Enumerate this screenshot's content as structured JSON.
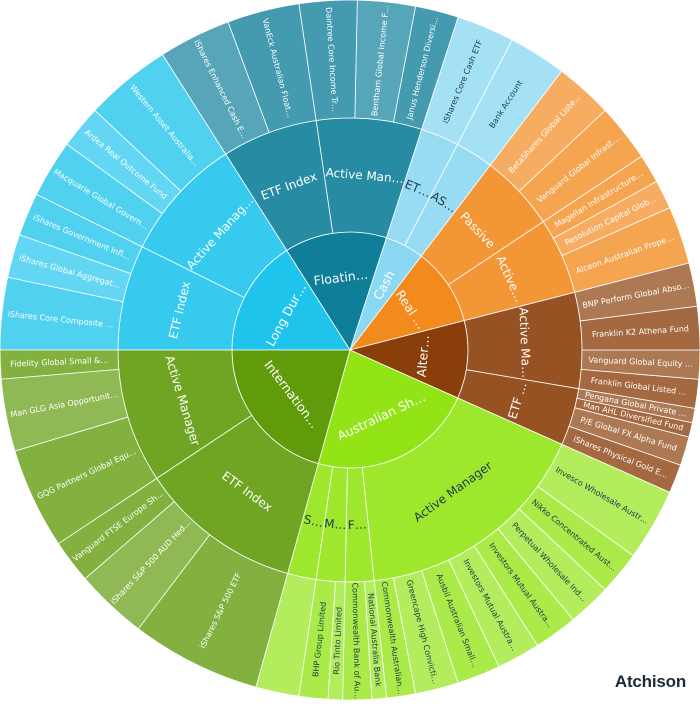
{
  "brand": {
    "name": "Atchison"
  },
  "chart_data": {
    "type": "sunburst",
    "start_angle_deg": 180,
    "colors": {
      "Long Duration": "#1ec4ec",
      "Floating Rate": "#0f7e99",
      "Cash": "#8bd8f2",
      "Real Assets": "#f28a1e",
      "Alternatives": "#8a3f0a",
      "Australian Shares": "#92e416",
      "International Shares": "#5f9b0a"
    },
    "groups": [
      {
        "name": "Long Duration",
        "children": [
          {
            "name": "Active Manager",
            "children": [
              {
                "name": "Western Asset Australian Bond Fund - Class A",
                "value": 6
              },
              {
                "name": "Ardea Real Outcome Fund",
                "value": 3
              },
              {
                "name": "Macquarie Global Government Bond Fund Class",
                "value": 4
              }
            ]
          },
          {
            "name": "ETF Index",
            "children": [
              {
                "name": "iShares Government Inflation ETF",
                "value": 3
              },
              {
                "name": "iShares Global Aggregate Bond ESG ETF",
                "value": 3
              },
              {
                "name": "iShares Core Composite Bond ETF",
                "value": 5
              }
            ]
          }
        ]
      },
      {
        "name": "Floating Rate",
        "children": [
          {
            "name": "Active Manager",
            "children": [
              {
                "name": "Janus Henderson Diversified Credit Fund",
                "value": 3
              },
              {
                "name": "Bentham Global Income Fund",
                "value": 4
              },
              {
                "name": "Daintree Core Income Trust",
                "value": 4
              }
            ]
          },
          {
            "name": "ETF Index",
            "children": [
              {
                "name": "VanEck Australian Floating Rate ETF",
                "value": 5
              },
              {
                "name": "iShares Enhanced Cash ETF",
                "value": 5
              }
            ]
          }
        ]
      },
      {
        "name": "Cash",
        "children": [
          {
            "name": "ASXStock",
            "children": [
              {
                "name": "Bank Account",
                "value": 4
              }
            ]
          },
          {
            "name": "ETF Index",
            "children": [
              {
                "name": "iShares Core Cash ETF",
                "value": 4
              }
            ]
          }
        ]
      },
      {
        "name": "Real Assets",
        "children": [
          {
            "name": "Active Manager",
            "children": [
              {
                "name": "Alceon Australian Property",
                "value": 4
              },
              {
                "name": "Resolution Capital Global Property Securities Fund",
                "value": 2
              },
              {
                "name": "Magellan Infrastructure Fund",
                "value": 2
              }
            ]
          },
          {
            "name": "Passive",
            "children": [
              {
                "name": "Vanguard Global Infrastructure Index Fund",
                "value": 4
              },
              {
                "name": "BetaShares Global Listed Property Fund",
                "value": 4
              }
            ]
          }
        ]
      },
      {
        "name": "Alternatives",
        "children": [
          {
            "name": "ETF Index",
            "children": [
              {
                "name": "iShares Physical Gold ETF",
                "value": 2
              },
              {
                "name": "P/E Global FX Alpha Fund",
                "value": 2
              },
              {
                "name": "Man AHL Diversified Fund",
                "value": 1
              },
              {
                "name": "Pengana Global Private Credit Trust",
                "value": 1
              }
            ]
          },
          {
            "name": "Active Manager",
            "children": [
              {
                "name": "Franklin Global Listed Private Equity Fund",
                "value": 2
              },
              {
                "name": "Vanguard Global Equity (Hedged) Fund",
                "value": 2
              },
              {
                "name": "Franklin K2 Athena Fund",
                "value": 3
              },
              {
                "name": "BNP Perform Global Absolute Return",
                "value": 3
              }
            ]
          }
        ]
      },
      {
        "name": "Australian Shares",
        "children": [
          {
            "name": "Small caps",
            "value": 3
          },
          {
            "name": "Materials - 15",
            "children": [
              {
                "name": "BHP Group Limited",
                "value": 2
              },
              {
                "name": "Rio Tinto Limited",
                "value": 1
              }
            ]
          },
          {
            "name": "Financials - 40",
            "children": [
              {
                "name": "Commonwealth Bank of Australia",
                "value": 2
              },
              {
                "name": "National Australia Bank",
                "value": 1
              }
            ]
          },
          {
            "name": "Active Manager",
            "children": [
              {
                "name": "Commonwealth Australian Shares",
                "value": 2
              },
              {
                "name": "Greencape High Conviction Fund",
                "value": 3
              },
              {
                "name": "Ausbil Australian SmallCap Fund",
                "value": 3
              },
              {
                "name": "Investors Mutual Australian Share Fund",
                "value": 3
              },
              {
                "name": "Investors Mutual Australian Smaller Companies",
                "value": 3
              },
              {
                "name": "Perpetual Wholesale Industrial Share Fund",
                "value": 3
              },
              {
                "name": "Nikko Concentrated Australian Share Fund",
                "value": 3
              },
              {
                "name": "Invesco Wholesale Australian Share Fund",
                "value": 5
              }
            ]
          }
        ]
      },
      {
        "name": "International Shares",
        "children": [
          {
            "name": "Active Manager",
            "children": [
              {
                "name": "Fidelity Global Small & Mid Cap Fund (NRS) Class A",
                "value": 2
              },
              {
                "name": "Man GLG Asia Opportunities",
                "value": 5
              },
              {
                "name": "GQG Partners Global Equity Fund - A Class",
                "value": 7
              }
            ]
          },
          {
            "name": "ETF Index",
            "children": [
              {
                "name": "Vanguard FTSE Europe Shares ETF",
                "value": 3
              },
              {
                "name": "iShares S&P 500 AUD Hedged ETF",
                "value": 5
              },
              {
                "name": "iShares S&P 500 ETF",
                "value": 9
              }
            ]
          }
        ]
      }
    ]
  }
}
